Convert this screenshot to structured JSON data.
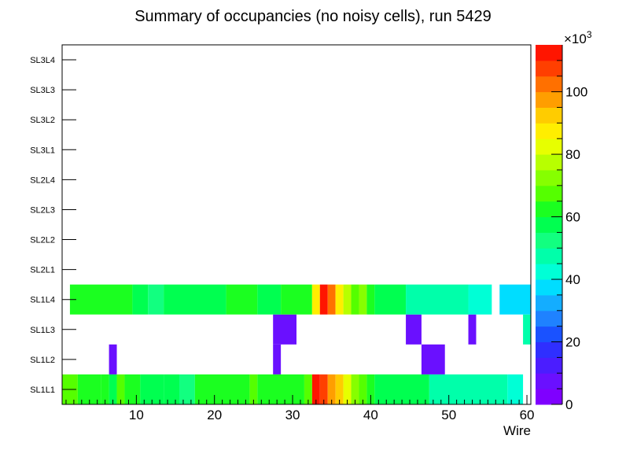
{
  "chart_data": {
    "type": "heatmap",
    "title": "Summary of occupancies (no noisy cells), run 5429",
    "xlabel": "Wire",
    "ylabel": "",
    "xlim": [
      0.5,
      60.5
    ],
    "x_ticks": [
      "10",
      "20",
      "30",
      "40",
      "50",
      "60"
    ],
    "y_categories": [
      "SL1L1",
      "SL1L2",
      "SL1L3",
      "SL1L4",
      "SL2L1",
      "SL2L2",
      "SL2L3",
      "SL2L4",
      "SL3L1",
      "SL3L2",
      "SL3L3",
      "SL3L4"
    ],
    "z_range": [
      0,
      115000
    ],
    "z_exponent": "3",
    "z_ticks": [
      "0",
      "20",
      "40",
      "60",
      "80",
      "100"
    ],
    "colorbar_colors": [
      "#7f00ff",
      "#6a10ff",
      "#4b1dff",
      "#2f2fff",
      "#1a52ff",
      "#1f82ff",
      "#14adff",
      "#00ddff",
      "#00ffd6",
      "#00ffaa",
      "#12ff80",
      "#00ff50",
      "#1bff20",
      "#55ff00",
      "#86ff00",
      "#b8ff00",
      "#e7ff00",
      "#ffee00",
      "#ffcc00",
      "#ff9e00",
      "#ff7000",
      "#ff3f00",
      "#ff1500"
    ],
    "rows": [
      {
        "layer": "SL1L1",
        "cells": [
          [
            1,
            2,
            68000
          ],
          [
            3,
            5,
            61000
          ],
          [
            6,
            6,
            65000
          ],
          [
            7,
            7,
            58000
          ],
          [
            8,
            8,
            67000
          ],
          [
            9,
            10,
            62000
          ],
          [
            11,
            13,
            55000
          ],
          [
            14,
            15,
            58000
          ],
          [
            16,
            17,
            54000
          ],
          [
            18,
            24,
            62000
          ],
          [
            25,
            25,
            66000
          ],
          [
            26,
            31,
            62000
          ],
          [
            32,
            32,
            68000
          ],
          [
            33,
            33,
            113000
          ],
          [
            34,
            34,
            105000
          ],
          [
            35,
            35,
            96000
          ],
          [
            36,
            36,
            90000
          ],
          [
            37,
            37,
            82000
          ],
          [
            38,
            38,
            72000
          ],
          [
            39,
            39,
            68000
          ],
          [
            40,
            40,
            63000
          ],
          [
            41,
            47,
            55000
          ],
          [
            48,
            57,
            46000
          ],
          [
            58,
            59,
            40000
          ]
        ]
      },
      {
        "layer": "SL1L2",
        "cells": [
          [
            7,
            7,
            5000
          ],
          [
            28,
            28,
            5000
          ],
          [
            47,
            49,
            5000
          ]
        ]
      },
      {
        "layer": "SL1L3",
        "cells": [
          [
            28,
            30,
            5000
          ],
          [
            45,
            46,
            5000
          ],
          [
            53,
            53,
            5000
          ],
          [
            60,
            60,
            48000
          ]
        ]
      },
      {
        "layer": "SL1L4",
        "cells": [
          [
            2,
            9,
            61000
          ],
          [
            10,
            11,
            55000
          ],
          [
            12,
            13,
            50000
          ],
          [
            14,
            21,
            55000
          ],
          [
            22,
            25,
            62000
          ],
          [
            26,
            28,
            56000
          ],
          [
            29,
            32,
            62000
          ],
          [
            33,
            33,
            85000
          ],
          [
            34,
            34,
            113000
          ],
          [
            35,
            35,
            102000
          ],
          [
            36,
            36,
            88000
          ],
          [
            37,
            37,
            78000
          ],
          [
            38,
            38,
            68000
          ],
          [
            39,
            39,
            70000
          ],
          [
            40,
            40,
            64000
          ],
          [
            41,
            44,
            56000
          ],
          [
            45,
            52,
            46000
          ],
          [
            53,
            55,
            40000
          ],
          [
            57,
            60,
            38000
          ]
        ]
      }
    ]
  }
}
